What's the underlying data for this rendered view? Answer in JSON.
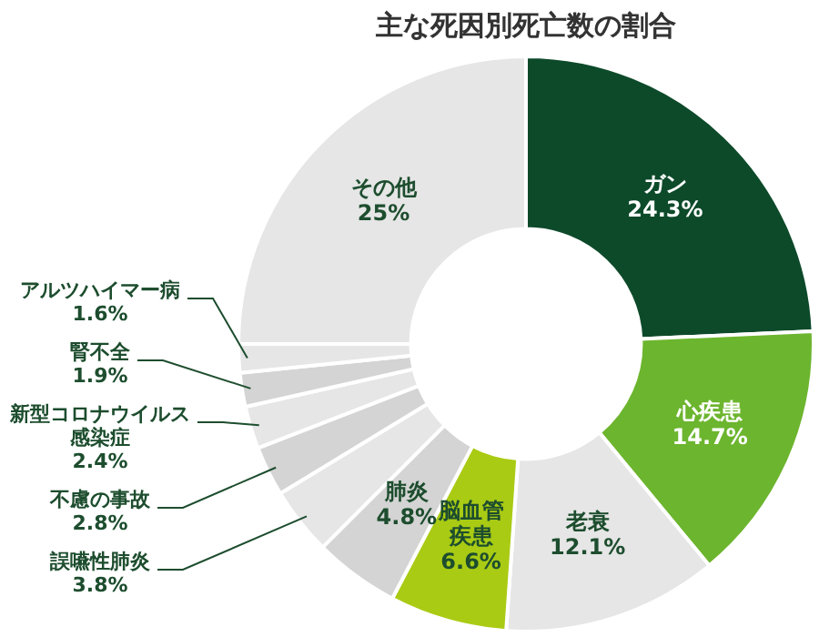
{
  "chart_data": {
    "type": "donut",
    "title": "主な死因別死亡数の割合",
    "categories": [
      "ガン",
      "心疾患",
      "老衰",
      "脳血管疾患",
      "肺炎",
      "誤嚥性肺炎",
      "不慮の事故",
      "新型コロナウイルス感染症",
      "腎不全",
      "アルツハイマー病",
      "その他"
    ],
    "values": [
      24.3,
      14.7,
      12.1,
      6.6,
      4.8,
      3.8,
      2.8,
      2.4,
      1.9,
      1.6,
      25
    ],
    "value_labels": [
      "24.3%",
      "14.7%",
      "12.1%",
      "6.6%",
      "4.8%",
      "3.8%",
      "2.8%",
      "2.4%",
      "1.9%",
      "1.6%",
      "25%"
    ],
    "colors": [
      "#0d4a2a",
      "#6cb52e",
      "#e6e6e6",
      "#a9cb14",
      "#d4d4d4",
      "#e6e6e6",
      "#d4d4d4",
      "#e6e6e6",
      "#d4d4d4",
      "#e6e6e6",
      "#e6e6e6"
    ],
    "legend": false
  }
}
